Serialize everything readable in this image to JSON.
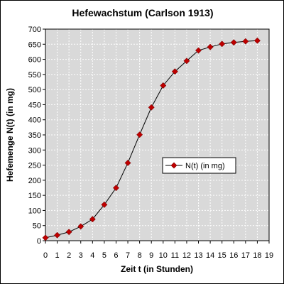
{
  "chart_data": {
    "type": "line",
    "title": "Hefewachstum  (Carlson 1913)",
    "xlabel": "Zeit t (in Stunden)",
    "ylabel": "Hefemenge N(t) (in mg)",
    "xlim": [
      0,
      19
    ],
    "ylim": [
      0,
      700
    ],
    "x_ticks": [
      "0",
      "1",
      "2",
      "3",
      "4",
      "5",
      "6",
      "7",
      "8",
      "9",
      "10",
      "11",
      "12",
      "13",
      "14",
      "15",
      "16",
      "17",
      "18",
      "19"
    ],
    "y_ticks": [
      "0",
      "50",
      "100",
      "150",
      "200",
      "250",
      "300",
      "350",
      "400",
      "450",
      "500",
      "550",
      "600",
      "650",
      "700"
    ],
    "grid": true,
    "legend_position": "right-middle",
    "series": [
      {
        "name": "N(t) (in mg)",
        "x": [
          0,
          1,
          2,
          3,
          4,
          5,
          6,
          7,
          8,
          9,
          10,
          11,
          12,
          13,
          14,
          15,
          16,
          17,
          18
        ],
        "values": [
          9.6,
          18.3,
          29,
          47.2,
          71.1,
          119.1,
          174.6,
          257.3,
          350.7,
          441,
          513.3,
          559.7,
          594.8,
          629.4,
          640.8,
          651.1,
          655.9,
          659.6,
          661.8
        ],
        "line_color": "#000000",
        "marker_color": "#c00000"
      }
    ],
    "colors": {
      "plot_background": "#d9d9d9",
      "gridline": "#ffffff",
      "marker": "#c00000"
    }
  }
}
